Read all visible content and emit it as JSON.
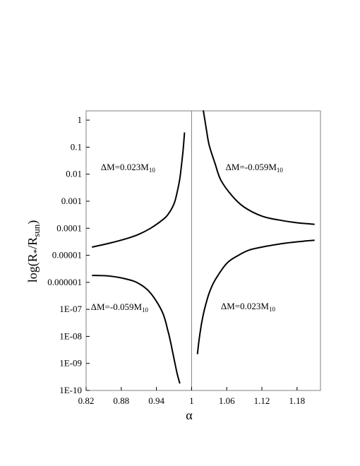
{
  "chart_data": {
    "type": "line",
    "title": "",
    "xlabel": "α",
    "ylabel": {
      "prefix": "log(R",
      "sub1": "*",
      "mid": "/R",
      "sub2": "sun",
      "suffix": ")"
    },
    "x_scale": "linear",
    "y_scale": "log",
    "xlim": [
      0.82,
      1.22
    ],
    "ylim": [
      1e-10,
      2.2
    ],
    "grid": false,
    "legend": "none",
    "x_ticks": [
      {
        "value": 0.82,
        "label": "0.82"
      },
      {
        "value": 0.88,
        "label": "0.88"
      },
      {
        "value": 0.94,
        "label": "0.94"
      },
      {
        "value": 1.0,
        "label": "1"
      },
      {
        "value": 1.06,
        "label": "1.06"
      },
      {
        "value": 1.12,
        "label": "1.12"
      },
      {
        "value": 1.18,
        "label": "1.18"
      }
    ],
    "y_ticks": [
      {
        "value": 1,
        "label": "1"
      },
      {
        "value": 0.1,
        "label": "0.1"
      },
      {
        "value": 0.01,
        "label": "0.01"
      },
      {
        "value": 0.001,
        "label": "0.001"
      },
      {
        "value": 0.0001,
        "label": "0.0001"
      },
      {
        "value": 1e-05,
        "label": "0.00001"
      },
      {
        "value": 1e-06,
        "label": "0.000001"
      },
      {
        "value": 1e-07,
        "label": "1E-07"
      },
      {
        "value": 1e-08,
        "label": "1E-08"
      },
      {
        "value": 1e-09,
        "label": "1E-09"
      },
      {
        "value": 1e-10,
        "label": "1E-10"
      }
    ],
    "reference_line_x": 1.0,
    "series": [
      {
        "x": [
          0.83,
          0.86,
          0.89,
          0.91,
          0.93,
          0.95,
          0.96,
          0.97,
          0.975,
          0.98,
          0.985,
          0.988
        ],
        "y": [
          2e-05,
          2.8e-05,
          4.2e-05,
          6e-05,
          0.0001,
          0.0002,
          0.00033,
          0.0008,
          0.002,
          0.007,
          0.06,
          0.35
        ]
      },
      {
        "x": [
          0.83,
          0.86,
          0.89,
          0.91,
          0.93,
          0.95,
          0.96,
          0.965,
          0.97,
          0.975,
          0.98
        ],
        "y": [
          1.8e-06,
          1.7e-06,
          1.3e-06,
          9e-07,
          4e-07,
          8e-08,
          1.5e-08,
          5e-09,
          1.5e-09,
          4.5e-10,
          1.8e-10
        ]
      },
      {
        "x": [
          1.02,
          1.025,
          1.03,
          1.04,
          1.05,
          1.07,
          1.09,
          1.12,
          1.15,
          1.18,
          1.21
        ],
        "y": [
          2.3,
          0.5,
          0.12,
          0.025,
          0.006,
          0.0015,
          0.0006,
          0.00028,
          0.0002,
          0.00016,
          0.00014
        ]
      },
      {
        "x": [
          1.01,
          1.013,
          1.017,
          1.022,
          1.03,
          1.04,
          1.06,
          1.08,
          1.1,
          1.13,
          1.16,
          1.19,
          1.21
        ],
        "y": [
          2.2e-09,
          8e-09,
          3e-08,
          1e-07,
          4e-07,
          1.2e-06,
          5e-06,
          1e-05,
          1.6e-05,
          2.2e-05,
          2.8e-05,
          3.3e-05,
          3.6e-05
        ]
      }
    ],
    "annotations": [
      {
        "main": "ΔM=0.023M",
        "sub": "10",
        "x": 0.845,
        "y": 0.018
      },
      {
        "main": "ΔM=-0.059M",
        "sub": "10",
        "x": 1.058,
        "y": 0.018
      },
      {
        "main": "ΔM=-0.059M",
        "sub": "10",
        "x": 0.828,
        "y": 1.2e-07
      },
      {
        "main": "ΔM=0.023M",
        "sub": "10",
        "x": 1.05,
        "y": 1.3e-07
      }
    ]
  }
}
